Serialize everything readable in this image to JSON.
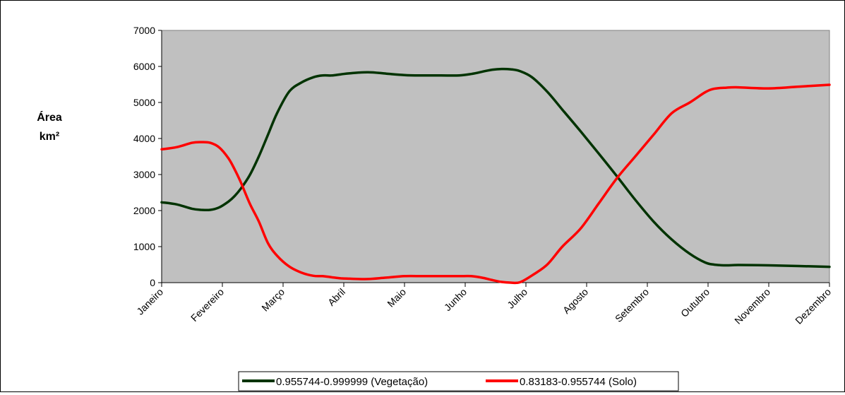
{
  "chart_data": {
    "type": "line",
    "ylabel_lines": [
      "Área",
      "km²"
    ],
    "ylim": [
      0,
      7000
    ],
    "ytick_step": 1000,
    "categories": [
      "Janeiro",
      "Fevereiro",
      "Março",
      "Abril",
      "Maio",
      "Junho",
      "Julho",
      "Agosto",
      "Setembro",
      "Outubro",
      "Novembro",
      "Dezembro"
    ],
    "x_range": [
      0,
      11
    ],
    "grid": false,
    "plot_background": "#c0c0c0",
    "legend_position": "bottom",
    "series": [
      {
        "name": "0.955744-0.999999 (Vegetação)",
        "color": "#003300",
        "x": [
          0,
          0.25,
          0.5,
          0.65,
          0.8,
          0.95,
          1.1,
          1.2,
          1.3,
          1.45,
          1.6,
          1.75,
          1.9,
          2.1,
          2.3,
          2.5,
          2.65,
          2.8,
          2.95,
          3.1,
          3.4,
          3.7,
          4,
          4.3,
          4.6,
          4.9,
          5.1,
          5.3,
          5.45,
          5.6,
          5.75,
          5.9,
          6.1,
          6.35,
          6.6,
          6.9,
          7.2,
          7.5,
          7.8,
          8.1,
          8.4,
          8.7,
          8.95,
          9.1,
          9.3,
          9.5,
          10,
          10.5,
          11
        ],
        "y": [
          2230,
          2170,
          2050,
          2020,
          2020,
          2090,
          2250,
          2400,
          2600,
          2980,
          3500,
          4100,
          4700,
          5300,
          5550,
          5700,
          5750,
          5750,
          5780,
          5810,
          5840,
          5800,
          5760,
          5750,
          5750,
          5750,
          5790,
          5860,
          5910,
          5930,
          5920,
          5870,
          5700,
          5300,
          4800,
          4200,
          3580,
          2950,
          2300,
          1700,
          1200,
          800,
          560,
          500,
          480,
          490,
          480,
          460,
          440
        ]
      },
      {
        "name": "0.83183-0.955744 (Solo)",
        "color": "#ff0000",
        "x": [
          0,
          0.25,
          0.5,
          0.65,
          0.8,
          0.95,
          1.1,
          1.2,
          1.3,
          1.45,
          1.6,
          1.75,
          1.9,
          2.1,
          2.3,
          2.5,
          2.65,
          2.8,
          2.95,
          3.1,
          3.4,
          3.7,
          4,
          4.3,
          4.6,
          4.9,
          5.1,
          5.3,
          5.45,
          5.6,
          5.75,
          5.9,
          6.1,
          6.35,
          6.6,
          6.9,
          7.2,
          7.5,
          7.8,
          8.1,
          8.4,
          8.7,
          8.95,
          9.1,
          9.3,
          9.5,
          10,
          10.5,
          11
        ],
        "y": [
          3700,
          3760,
          3880,
          3900,
          3880,
          3750,
          3450,
          3150,
          2800,
          2200,
          1700,
          1100,
          750,
          450,
          280,
          190,
          180,
          150,
          120,
          110,
          100,
          140,
          180,
          180,
          180,
          180,
          180,
          130,
          70,
          20,
          0,
          10,
          200,
          500,
          1000,
          1500,
          2200,
          2900,
          3500,
          4100,
          4700,
          5000,
          5280,
          5380,
          5410,
          5420,
          5390,
          5440,
          5490
        ]
      }
    ]
  }
}
